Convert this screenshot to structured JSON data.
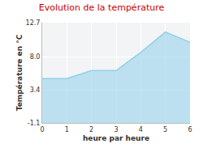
{
  "chart_data": {
    "type": "area",
    "title": "Evolution de la température",
    "x_label": "heure par heure",
    "y_label": "Température en °C",
    "x": [
      0,
      1,
      2,
      3,
      4,
      5,
      6
    ],
    "values": [
      5.0,
      5.0,
      6.1,
      6.1,
      8.6,
      11.4,
      10.0
    ],
    "color": "#8fd0ea",
    "xlim": [
      0,
      6
    ],
    "xticks": [
      0,
      1,
      2,
      3,
      4,
      5,
      6
    ],
    "ylim": [
      -1.1,
      12.7
    ],
    "yticks": [
      -1.1,
      3.4,
      {
        "value": 8,
        "label": "8.0"
      },
      12.7
    ],
    "grid": true
  }
}
